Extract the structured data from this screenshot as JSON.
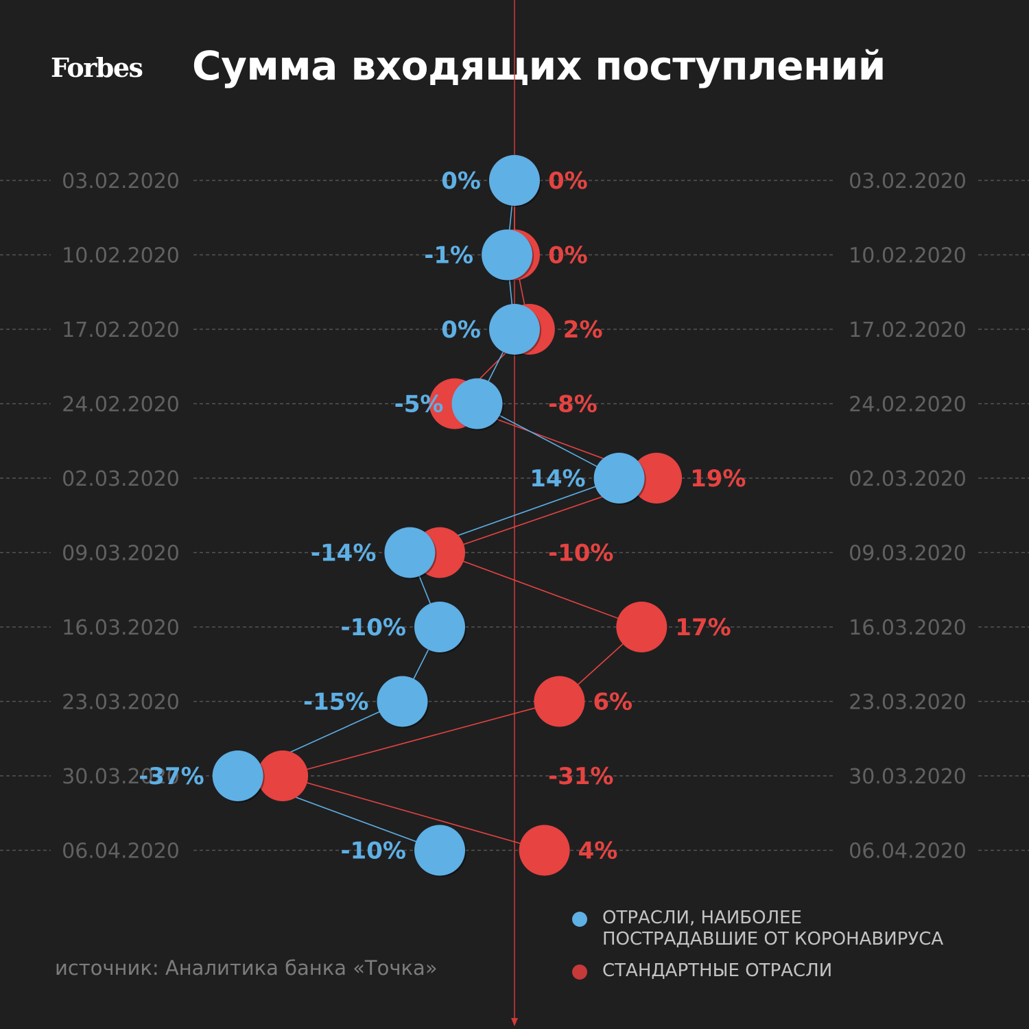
{
  "header": {
    "logo": "Forbes",
    "title": "Сумма входящих поступлений"
  },
  "source": "источник: Аналитика банка «Точка»",
  "legend": [
    {
      "label": "ОТРАСЛИ, НАИБОЛЕЕ\nПОСТРАДАВШИЕ ОТ КОРОНАВИРУСА",
      "color": "#5eb0e5"
    },
    {
      "label": "СТАНДАРТНЫЕ ОТРАСЛИ",
      "color": "#c8393a"
    }
  ],
  "colors": {
    "background": "#1f1f20",
    "affected": "#5eb0e5",
    "standard": "#e64341",
    "axis": "#d03a37",
    "dates": "#616161"
  },
  "chart_data": {
    "type": "line",
    "categories": [
      "03.02.2020",
      "10.02.2020",
      "17.02.2020",
      "24.02.2020",
      "02.03.2020",
      "09.03.2020",
      "16.03.2020",
      "23.03.2020",
      "30.03.2020",
      "06.04.2020"
    ],
    "series": [
      {
        "name": "ОТРАСЛИ, НАИБОЛЕЕ ПОСТРАДАВШИЕ ОТ КОРОНАВИРУСА",
        "values": [
          0,
          -1,
          0,
          -5,
          14,
          -14,
          -10,
          -15,
          -37,
          -10
        ],
        "labels": [
          "0%",
          "-1%",
          "0%",
          "-5%",
          "14%",
          "-14%",
          "-10%",
          "-15%",
          "-37%",
          "-10%"
        ]
      },
      {
        "name": "СТАНДАРТНЫЕ ОТРАСЛИ",
        "values": [
          0,
          0,
          2,
          -8,
          19,
          -10,
          17,
          6,
          -31,
          4
        ],
        "labels": [
          "0%",
          "0%",
          "2%",
          "-8%",
          "19%",
          "-10%",
          "17%",
          "6%",
          "-31%",
          "4%"
        ]
      }
    ],
    "orientation": "vertical",
    "value_axis": "horizontal, zero at center line"
  }
}
